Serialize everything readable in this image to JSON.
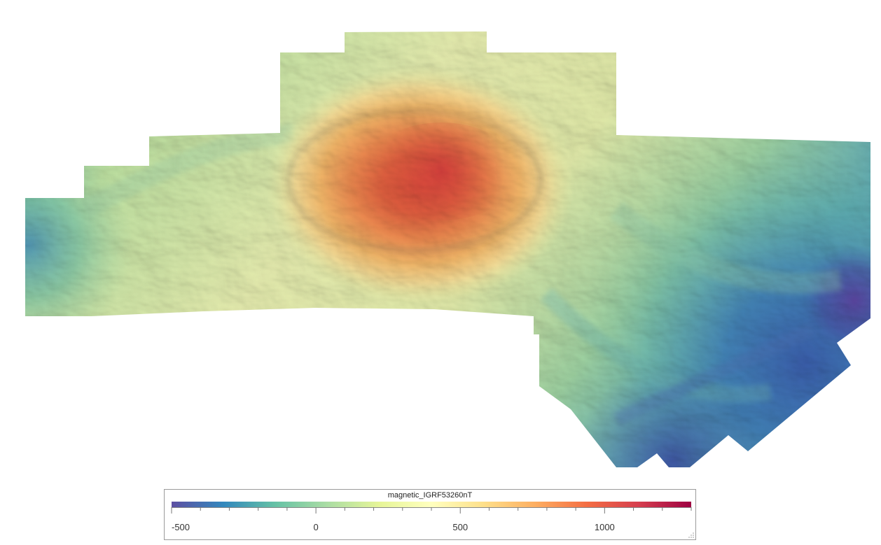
{
  "legend": {
    "title": "magnetic_IGRF53260nT",
    "min": -500,
    "max": 1300,
    "ticks": [
      {
        "value": -500,
        "label": "-500"
      },
      {
        "value": 0,
        "label": "0"
      },
      {
        "value": 500,
        "label": "500"
      },
      {
        "value": 1000,
        "label": "1000"
      }
    ],
    "minor_tick_step": 100,
    "colormap": [
      "#5e4fa2",
      "#3288bd",
      "#66c2a5",
      "#abdda4",
      "#e6f598",
      "#ffffbf",
      "#fee08b",
      "#fdae61",
      "#f46d43",
      "#d53e4f",
      "#9e0142"
    ]
  },
  "map": {
    "background": "#ffffff",
    "hillshade": true,
    "anomaly_peak_color": "#d8463c",
    "low_color": "#4a3fa0"
  }
}
